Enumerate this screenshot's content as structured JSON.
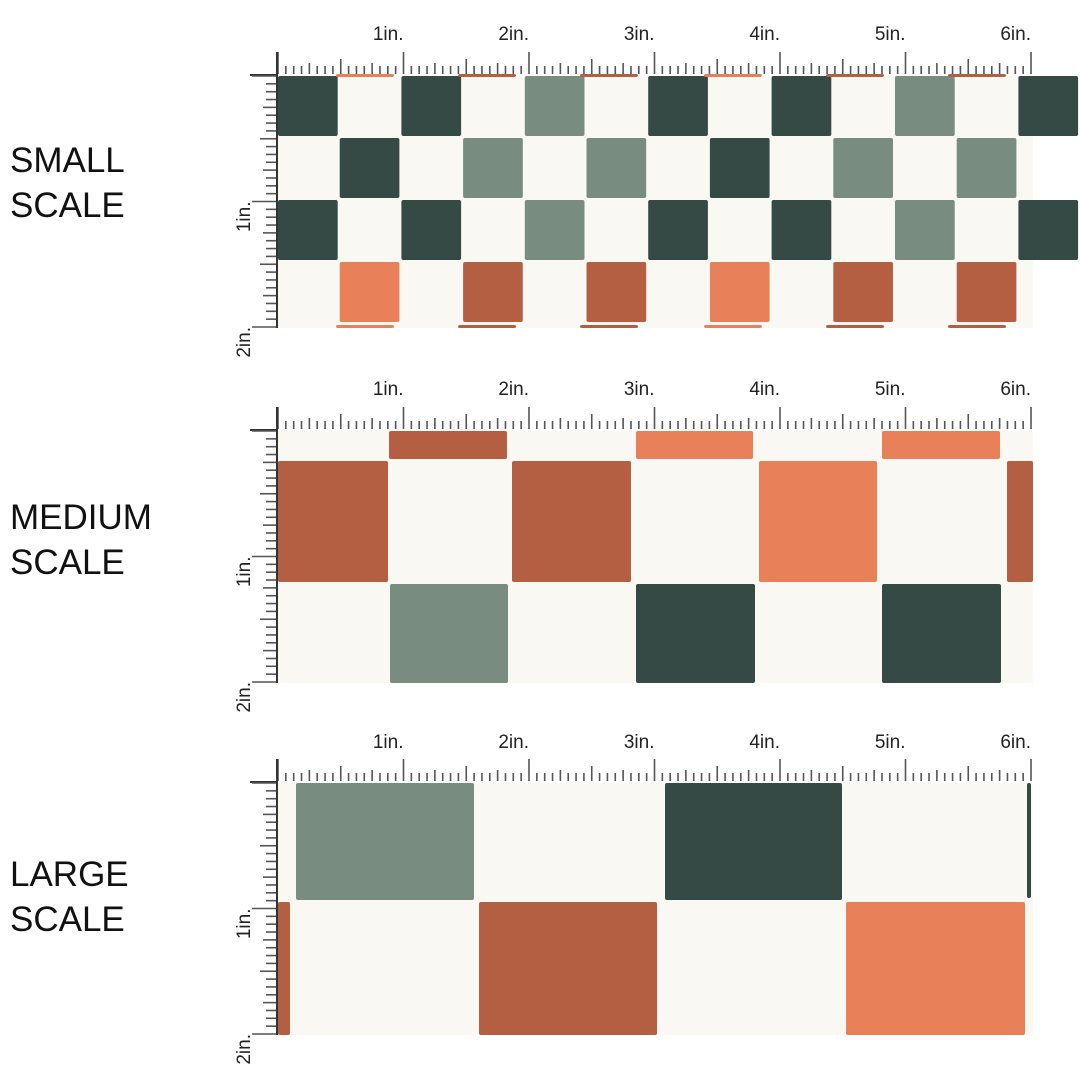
{
  "colors": {
    "background": "#faf8f2",
    "sage": "#788c80",
    "dark_green": "#354a45",
    "rust": "#b45f42",
    "coral": "#e8805a"
  },
  "panels": [
    {
      "id": "small",
      "label_line1": "SMALL",
      "label_line2": "SCALE",
      "inch_labels": [
        "1in.",
        "2in.",
        "3in.",
        "4in.",
        "5in.",
        "6in."
      ],
      "vertical_labels": [
        "1in.",
        "2in."
      ]
    },
    {
      "id": "medium",
      "label_line1": "MEDIUM",
      "label_line2": "SCALE",
      "inch_labels": [
        "1in.",
        "2in.",
        "3in.",
        "4in.",
        "5in.",
        "6in."
      ],
      "vertical_labels": [
        "1in.",
        "2in."
      ]
    },
    {
      "id": "large",
      "label_line1": "LARGE",
      "label_line2": "SCALE",
      "inch_labels": [
        "1in.",
        "2in.",
        "3in.",
        "4in.",
        "5in.",
        "6in."
      ],
      "vertical_labels": [
        "1in.",
        "2in."
      ]
    }
  ]
}
